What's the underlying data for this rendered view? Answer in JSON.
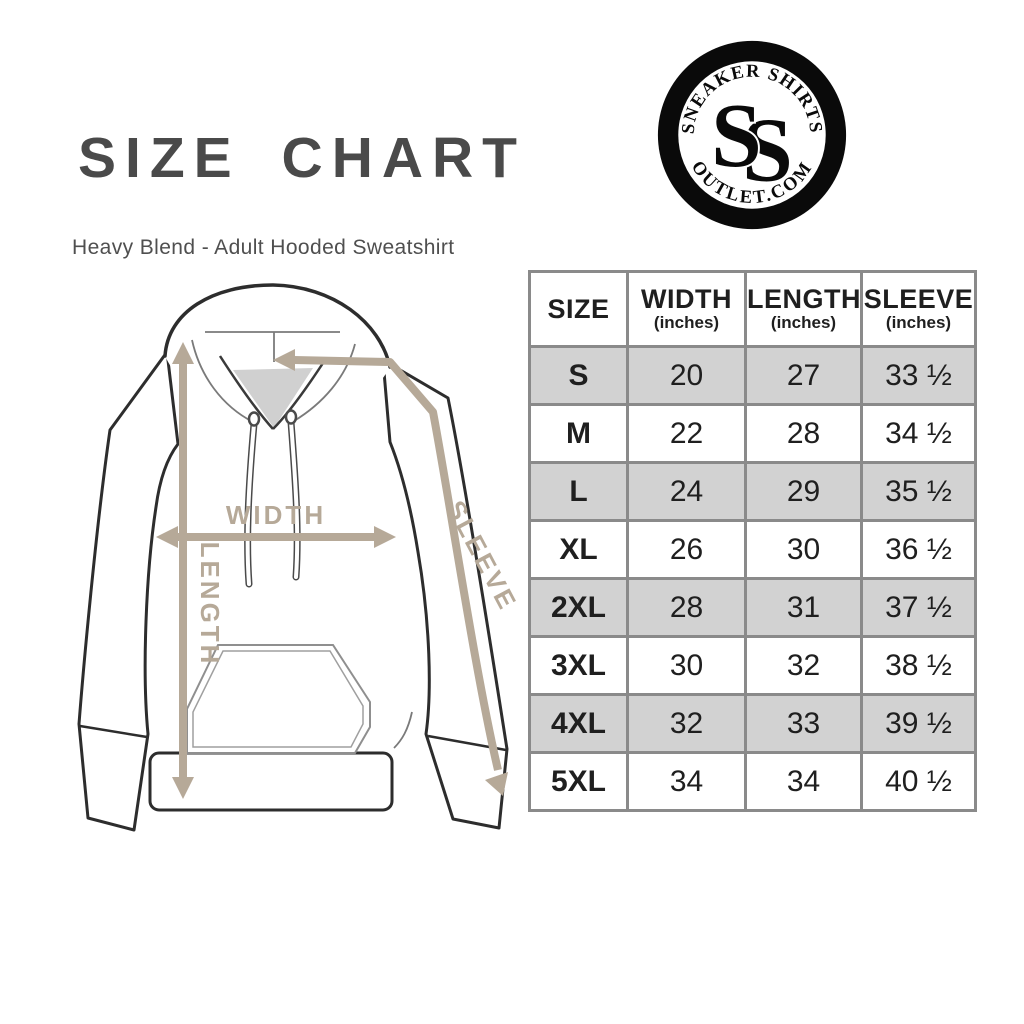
{
  "header": {
    "title": "SIZE CHART",
    "subtitle": "Heavy Blend - Adult Hooded Sweatshirt"
  },
  "logo": {
    "top_text": "SNEAKER SHIRTS",
    "bottom_text": "OUTLET.COM",
    "monogram_s1": "S",
    "monogram_s2": "S"
  },
  "diagram": {
    "width_label": "WIDTH",
    "length_label": "LENGTH",
    "sleeve_label": "SLEEVE"
  },
  "size_table": {
    "columns": [
      {
        "label": "SIZE",
        "sub": ""
      },
      {
        "label": "WIDTH",
        "sub": "(inches)"
      },
      {
        "label": "LENGTH",
        "sub": "(inches)"
      },
      {
        "label": "SLEEVE",
        "sub": "(inches)"
      }
    ],
    "rows": [
      {
        "size": "S",
        "width": "20",
        "length": "27",
        "sleeve": "33 ½"
      },
      {
        "size": "M",
        "width": "22",
        "length": "28",
        "sleeve": "34 ½"
      },
      {
        "size": "L",
        "width": "24",
        "length": "29",
        "sleeve": "35 ½"
      },
      {
        "size": "XL",
        "width": "26",
        "length": "30",
        "sleeve": "36 ½"
      },
      {
        "size": "2XL",
        "width": "28",
        "length": "31",
        "sleeve": "37 ½"
      },
      {
        "size": "3XL",
        "width": "30",
        "length": "32",
        "sleeve": "38 ½"
      },
      {
        "size": "4XL",
        "width": "32",
        "length": "33",
        "sleeve": "39 ½"
      },
      {
        "size": "5XL",
        "width": "34",
        "length": "34",
        "sleeve": "40 ½"
      }
    ]
  },
  "colors": {
    "measure_tan": "#b6a998",
    "title_gray": "#4a4a4a",
    "table_border": "#8a8a8a",
    "row_alt": "#d2d2d2",
    "garment_outline": "#2d2d2d"
  }
}
